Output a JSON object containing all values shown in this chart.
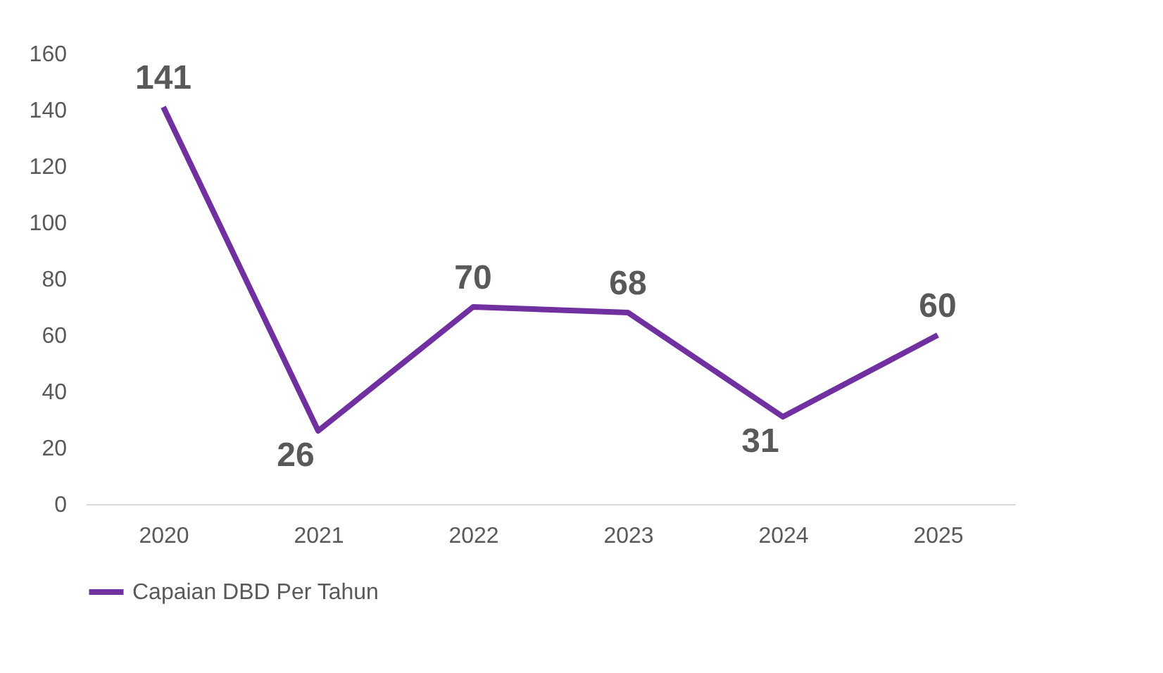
{
  "chart_data": {
    "type": "line",
    "categories": [
      "2020",
      "2021",
      "2022",
      "2023",
      "2024",
      "2025"
    ],
    "series": [
      {
        "name": "Capaian DBD Per Tahun",
        "color": "#7030a0",
        "values": [
          141,
          26,
          70,
          68,
          31,
          60
        ]
      }
    ],
    "ylim": [
      0,
      160
    ],
    "yticks": [
      0,
      20,
      40,
      60,
      80,
      100,
      120,
      140,
      160
    ],
    "grid": false,
    "legend": "bottom",
    "data_labels": true,
    "marker": "none",
    "line_style": "solid"
  }
}
